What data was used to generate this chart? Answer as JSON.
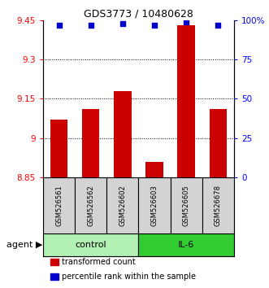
{
  "title": "GDS3773 / 10480628",
  "samples": [
    "GSM526561",
    "GSM526562",
    "GSM526602",
    "GSM526603",
    "GSM526605",
    "GSM526678"
  ],
  "bar_values": [
    9.07,
    9.11,
    9.18,
    8.91,
    9.43,
    9.11
  ],
  "percentile_values": [
    97,
    97,
    98,
    97,
    99,
    97
  ],
  "ylim_left": [
    8.85,
    9.45
  ],
  "ylim_right": [
    0,
    100
  ],
  "yticks_left": [
    8.85,
    9.0,
    9.15,
    9.3,
    9.45
  ],
  "yticks_right": [
    0,
    25,
    50,
    75,
    100
  ],
  "ytick_labels_left": [
    "8.85",
    "9",
    "9.15",
    "9.3",
    "9.45"
  ],
  "ytick_labels_right": [
    "0",
    "25",
    "50",
    "75",
    "100%"
  ],
  "groups": [
    {
      "label": "control",
      "indices": [
        0,
        1,
        2
      ],
      "color": "#b3f0b3"
    },
    {
      "label": "IL-6",
      "indices": [
        3,
        4,
        5
      ],
      "color": "#33cc33"
    }
  ],
  "bar_color": "#cc0000",
  "dot_color": "#0000cc",
  "bar_width": 0.55,
  "grid_lines": [
    9.0,
    9.15,
    9.3
  ],
  "legend_items": [
    {
      "label": "transformed count",
      "color": "#cc0000"
    },
    {
      "label": "percentile rank within the sample",
      "color": "#0000cc"
    }
  ],
  "agent_label": "agent",
  "sample_box_color": "#d3d3d3",
  "title_fontsize": 9,
  "axis_fontsize": 7.5,
  "sample_fontsize": 6,
  "group_fontsize": 8,
  "legend_fontsize": 7,
  "agent_fontsize": 8
}
